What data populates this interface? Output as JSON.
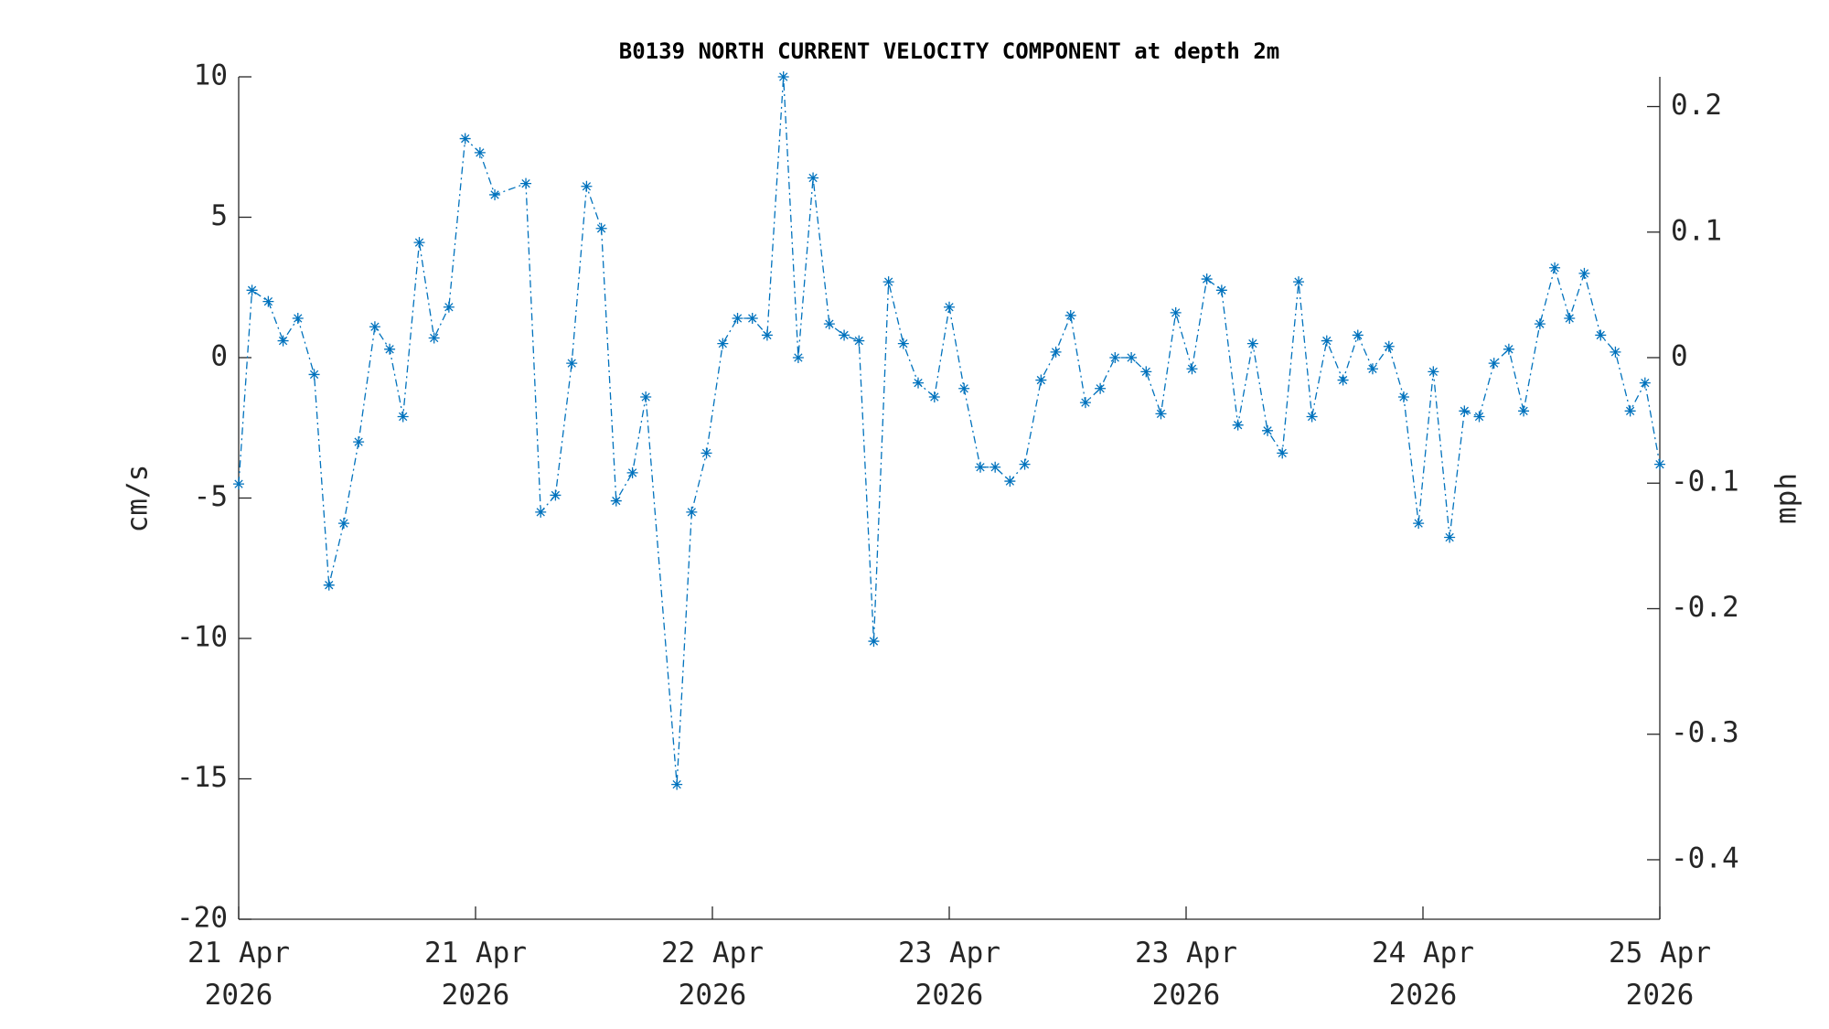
{
  "chart_data": {
    "type": "line",
    "title": "B0139 NORTH CURRENT VELOCITY COMPONENT at depth 2m",
    "ylabel": "cm/s",
    "y2label": "mph",
    "xlim": [
      0,
      96
    ],
    "xticks": [
      {
        "value": 0,
        "label": "21 Apr 2026"
      },
      {
        "value": 16,
        "label": "21 Apr 2026"
      },
      {
        "value": 32,
        "label": "22 Apr 2026"
      },
      {
        "value": 48,
        "label": "23 Apr 2026"
      },
      {
        "value": 64,
        "label": "23 Apr 2026"
      },
      {
        "value": 80,
        "label": "24 Apr 2026"
      },
      {
        "value": 96,
        "label": "25 Apr 2026"
      }
    ],
    "ylim": [
      -20,
      10
    ],
    "yticks": [
      -20,
      -15,
      -10,
      -5,
      0,
      5,
      10
    ],
    "y2lim": [
      -0.44739,
      0.22369
    ],
    "y2ticks": [
      -0.4,
      -0.3,
      -0.2,
      -0.1,
      0,
      0.1,
      0.2
    ],
    "series": [
      {
        "color": "#0072bd",
        "x": [
          0,
          0.9,
          2.0,
          3.0,
          4.0,
          5.1,
          6.1,
          7.1,
          8.1,
          9.2,
          10.2,
          11.1,
          12.2,
          13.2,
          14.2,
          15.3,
          16.3,
          17.3,
          19.4,
          20.4,
          21.4,
          22.5,
          23.5,
          24.5,
          25.5,
          26.6,
          27.5,
          29.6,
          30.6,
          31.6,
          32.7,
          33.7,
          34.7,
          35.7,
          36.8,
          37.8,
          38.8,
          39.9,
          40.9,
          41.9,
          42.9,
          43.9,
          44.9,
          45.9,
          47.0,
          48.0,
          49.0,
          50.1,
          51.1,
          52.1,
          53.1,
          54.2,
          55.2,
          56.2,
          57.2,
          58.2,
          59.2,
          60.3,
          61.3,
          62.3,
          63.3,
          64.4,
          65.4,
          66.4,
          67.5,
          68.5,
          69.5,
          70.5,
          71.6,
          72.5,
          73.5,
          74.6,
          75.6,
          76.6,
          77.7,
          78.7,
          79.7,
          80.7,
          81.8,
          82.8,
          83.8,
          84.8,
          85.8,
          86.8,
          87.9,
          88.9,
          89.9,
          90.9,
          92.0,
          93.0,
          94.0,
          95.0,
          96.0
        ],
        "values": [
          -4.5,
          2.4,
          2.0,
          0.6,
          1.4,
          -0.6,
          -8.1,
          -5.9,
          -3.0,
          1.1,
          0.3,
          -2.1,
          4.1,
          0.7,
          1.8,
          7.8,
          7.3,
          5.8,
          6.2,
          -5.5,
          -4.9,
          -0.2,
          6.1,
          4.6,
          -5.1,
          -4.1,
          -1.4,
          -15.2,
          -5.5,
          -3.4,
          0.5,
          1.4,
          1.4,
          0.8,
          10.0,
          0.0,
          6.4,
          1.2,
          0.8,
          0.6,
          -10.1,
          2.7,
          0.5,
          -0.9,
          -1.4,
          1.8,
          -1.1,
          -3.9,
          -3.9,
          -4.4,
          -3.8,
          -0.8,
          0.2,
          1.5,
          -1.6,
          -1.1,
          0.0,
          0.0,
          -0.5,
          -2.0,
          1.6,
          -0.4,
          2.8,
          2.4,
          -2.4,
          0.5,
          -2.6,
          -3.4,
          2.7,
          -2.1,
          0.6,
          -0.8,
          0.8,
          -0.4,
          0.4,
          -1.4,
          -5.9,
          -0.5,
          -6.4,
          -1.9,
          -2.1,
          -0.2,
          0.3,
          -1.9,
          1.2,
          3.2,
          1.4,
          3.0,
          0.8,
          0.2,
          -1.9,
          -0.9,
          -3.8
        ]
      }
    ]
  }
}
